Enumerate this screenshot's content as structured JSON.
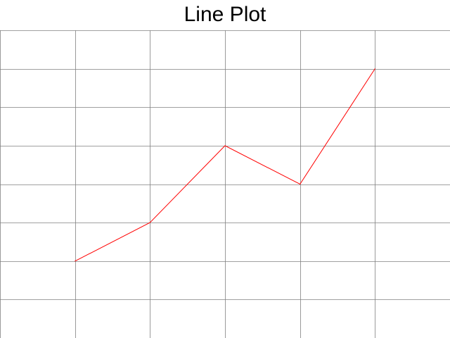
{
  "chart_data": {
    "type": "line",
    "title": "Line Plot",
    "xlabel": "",
    "ylabel": "",
    "x": [
      1,
      2,
      3,
      4,
      5
    ],
    "series": [
      {
        "values": [
          2,
          3,
          5,
          4,
          7
        ],
        "color": "#ff0000"
      }
    ],
    "xlim": [
      0,
      6
    ],
    "ylim": [
      0,
      8
    ],
    "grid": true,
    "grid_color": "#808080",
    "axes_visible": false,
    "tick_labels_visible": false
  }
}
